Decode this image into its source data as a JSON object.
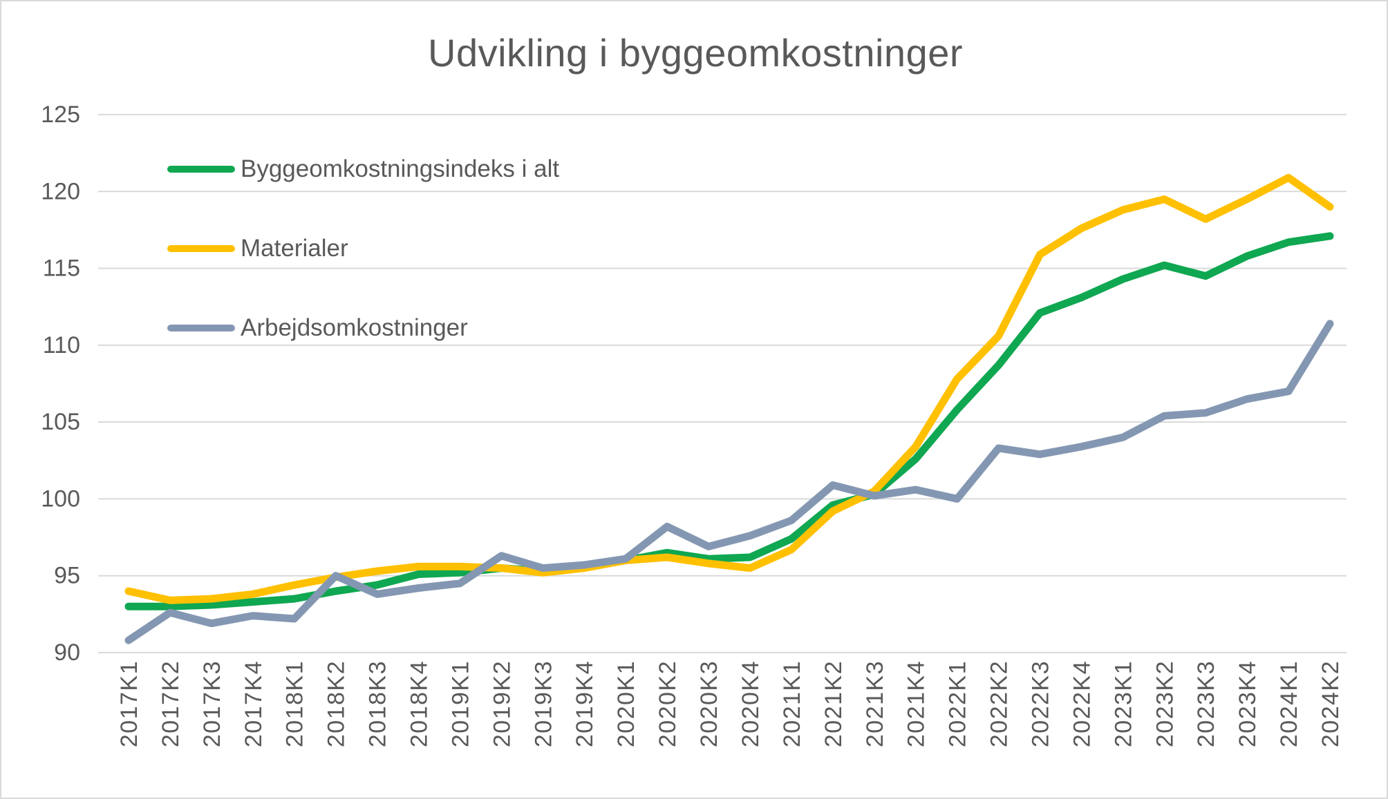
{
  "title": "Udvikling i byggeomkostninger",
  "colors": {
    "green": "#0fa751",
    "yellow": "#ffc000",
    "gray": "#8497b2",
    "grid": "#d9d9d9",
    "text": "#595959",
    "border": "#d9d9d9",
    "background": "#ffffff"
  },
  "chart_data": {
    "type": "line",
    "title": "Udvikling i byggeomkostninger",
    "xlabel": "",
    "ylabel": "",
    "ylim": [
      90,
      125
    ],
    "yticks": [
      90,
      95,
      100,
      105,
      110,
      115,
      120,
      125
    ],
    "grid": true,
    "legend_position": "top-left-inside",
    "categories": [
      "2017K1",
      "2017K2",
      "2017K3",
      "2017K4",
      "2018K1",
      "2018K2",
      "2018K3",
      "2018K4",
      "2019K1",
      "2019K2",
      "2019K3",
      "2019K4",
      "2020K1",
      "2020K2",
      "2020K3",
      "2020K4",
      "2021K1",
      "2021K2",
      "2021K3",
      "2021K4",
      "2022K1",
      "2022K2",
      "2022K3",
      "2022K4",
      "2023K1",
      "2023K2",
      "2023K3",
      "2023K4",
      "2024K1",
      "2024K2"
    ],
    "series": [
      {
        "name": "Byggeomkostningsindeks i alt",
        "color_key": "green",
        "values": [
          93.0,
          93.0,
          93.1,
          93.3,
          93.5,
          94.0,
          94.4,
          95.1,
          95.2,
          95.5,
          95.3,
          95.6,
          96.0,
          96.5,
          96.1,
          96.2,
          97.4,
          99.6,
          100.3,
          102.6,
          105.8,
          108.7,
          112.1,
          113.1,
          114.3,
          115.2,
          114.5,
          115.8,
          116.7,
          117.1
        ]
      },
      {
        "name": "Materialer",
        "color_key": "yellow",
        "values": [
          94.0,
          93.4,
          93.5,
          93.8,
          94.4,
          94.9,
          95.3,
          95.6,
          95.6,
          95.5,
          95.2,
          95.5,
          96.0,
          96.2,
          95.8,
          95.5,
          96.7,
          99.2,
          100.5,
          103.4,
          107.8,
          110.6,
          115.9,
          117.6,
          118.8,
          119.5,
          118.2,
          119.5,
          120.9,
          119.0
        ]
      },
      {
        "name": "Arbejdsomkostninger",
        "color_key": "gray",
        "values": [
          90.8,
          92.6,
          91.9,
          92.4,
          92.2,
          95.0,
          93.8,
          94.2,
          94.5,
          96.3,
          95.5,
          95.7,
          96.1,
          98.2,
          96.9,
          97.6,
          98.6,
          100.9,
          100.2,
          100.6,
          100.0,
          103.3,
          102.9,
          103.4,
          104.0,
          105.4,
          105.6,
          106.5,
          107.0,
          111.4
        ]
      }
    ]
  }
}
